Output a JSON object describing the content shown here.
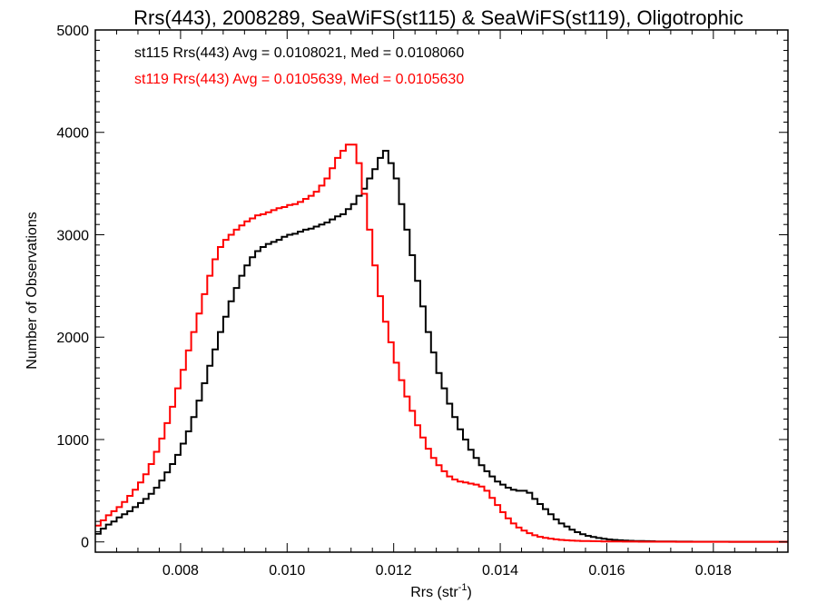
{
  "chart_data": {
    "type": "line",
    "style": "histogram-step",
    "title": "Rrs(443), 2008289, SeaWiFS(st115) & SeaWiFS(st119), Oligotrophic",
    "xlabel": "Rrs (str",
    "xlabel_superscript": "-1",
    "xlabel_suffix": ")",
    "ylabel": "Number of Observations",
    "xlim": [
      0.0064,
      0.0194
    ],
    "ylim": [
      -100,
      5000
    ],
    "xticks": [
      0.008,
      0.01,
      0.012,
      0.014,
      0.016,
      0.018
    ],
    "xtick_labels": [
      "0.008",
      "0.010",
      "0.012",
      "0.014",
      "0.016",
      "0.018"
    ],
    "yticks": [
      0,
      1000,
      2000,
      3000,
      4000,
      5000
    ],
    "ytick_labels": [
      "0",
      "1000",
      "2000",
      "3000",
      "4000",
      "5000"
    ],
    "grid": false,
    "annotations": [
      {
        "text": "st115 Rrs(443) Avg = 0.0108021, Med = 0.0108060",
        "color": "#000000"
      },
      {
        "text": "st119 Rrs(443) Avg = 0.0105639, Med = 0.0105630",
        "color": "#ff0000"
      }
    ],
    "bin_width": 0.0001,
    "x_start": 0.0064,
    "series": [
      {
        "name": "st115",
        "color": "#000000",
        "values": [
          80,
          130,
          170,
          200,
          240,
          270,
          300,
          340,
          380,
          420,
          470,
          530,
          600,
          680,
          760,
          850,
          960,
          1080,
          1220,
          1380,
          1550,
          1720,
          1880,
          2050,
          2200,
          2350,
          2480,
          2600,
          2700,
          2780,
          2840,
          2880,
          2910,
          2930,
          2950,
          2980,
          3000,
          3010,
          3030,
          3050,
          3060,
          3080,
          3100,
          3120,
          3150,
          3180,
          3200,
          3250,
          3300,
          3380,
          3450,
          3550,
          3640,
          3750,
          3820,
          3700,
          3550,
          3300,
          3050,
          2800,
          2550,
          2300,
          2050,
          1850,
          1650,
          1500,
          1350,
          1220,
          1100,
          1000,
          900,
          820,
          750,
          690,
          640,
          590,
          560,
          530,
          510,
          500,
          500,
          480,
          420,
          370,
          320,
          270,
          220,
          180,
          150,
          120,
          95,
          75,
          60,
          48,
          38,
          30,
          24,
          20,
          16,
          13,
          11,
          9,
          8,
          7,
          6,
          5,
          5,
          4,
          4,
          3,
          3,
          3,
          2,
          2,
          2,
          2,
          2,
          2,
          2,
          1,
          1,
          1,
          1,
          1,
          1,
          1,
          1,
          1,
          1,
          1,
          1,
          1,
          1,
          1
        ]
      },
      {
        "name": "st119",
        "color": "#ff0000",
        "values": [
          160,
          210,
          260,
          300,
          340,
          390,
          450,
          510,
          580,
          660,
          760,
          880,
          1010,
          1160,
          1320,
          1500,
          1680,
          1870,
          2050,
          2230,
          2420,
          2600,
          2760,
          2880,
          2950,
          3000,
          3050,
          3090,
          3130,
          3160,
          3190,
          3200,
          3220,
          3240,
          3260,
          3270,
          3290,
          3300,
          3320,
          3350,
          3380,
          3420,
          3480,
          3550,
          3650,
          3750,
          3820,
          3880,
          3880,
          3700,
          3400,
          3050,
          2700,
          2400,
          2150,
          1950,
          1750,
          1580,
          1420,
          1280,
          1140,
          1020,
          910,
          820,
          750,
          690,
          640,
          610,
          590,
          580,
          570,
          560,
          540,
          500,
          430,
          360,
          290,
          230,
          180,
          140,
          110,
          85,
          65,
          50,
          40,
          32,
          25,
          20,
          16,
          13,
          11,
          9,
          8,
          7,
          6,
          5,
          5,
          4,
          4,
          3,
          3,
          3,
          2,
          2,
          2,
          2,
          2,
          2,
          2,
          1,
          1,
          1,
          1,
          1,
          1,
          1,
          1,
          1,
          1,
          1,
          1,
          1,
          1,
          1,
          1,
          1,
          1,
          1,
          1,
          1,
          1
        ]
      }
    ]
  }
}
